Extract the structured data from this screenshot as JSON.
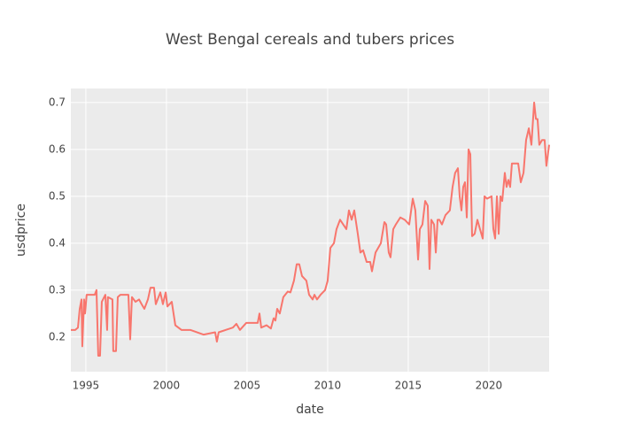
{
  "chart_data": {
    "type": "line",
    "title": "West Bengal cereals and tubers prices",
    "x_label": "date",
    "y_label": "usdprice",
    "x": [
      1994.07,
      1994.34,
      1994.51,
      1994.62,
      1994.73,
      1994.78,
      1994.89,
      1994.95,
      1995.05,
      1995.55,
      1995.66,
      1995.77,
      1995.88,
      1995.99,
      1996.21,
      1996.32,
      1996.37,
      1996.65,
      1996.7,
      1996.87,
      1996.98,
      1997.14,
      1997.64,
      1997.75,
      1997.86,
      1998.08,
      1998.3,
      1998.46,
      1998.63,
      1998.85,
      1999.01,
      1999.23,
      1999.34,
      1999.62,
      1999.78,
      1999.95,
      2000.06,
      2000.33,
      2000.44,
      2000.55,
      2000.93,
      2001.48,
      2002.31,
      2003.02,
      2003.13,
      2003.24,
      2003.68,
      2004.12,
      2004.34,
      2004.56,
      2004.95,
      2005.66,
      2005.77,
      2005.88,
      2006.21,
      2006.48,
      2006.65,
      2006.76,
      2006.87,
      2007.03,
      2007.25,
      2007.53,
      2007.69,
      2007.91,
      2008.08,
      2008.24,
      2008.41,
      2008.68,
      2008.85,
      2009.07,
      2009.18,
      2009.34,
      2009.56,
      2009.84,
      2010.0,
      2010.17,
      2010.39,
      2010.55,
      2010.77,
      2011.16,
      2011.32,
      2011.49,
      2011.65,
      2011.87,
      2012.03,
      2012.2,
      2012.42,
      2012.64,
      2012.75,
      2012.97,
      2013.3,
      2013.52,
      2013.63,
      2013.79,
      2013.9,
      2014.07,
      2014.23,
      2014.51,
      2014.78,
      2015.06,
      2015.28,
      2015.44,
      2015.61,
      2015.72,
      2015.88,
      2016.05,
      2016.21,
      2016.32,
      2016.43,
      2016.6,
      2016.71,
      2016.82,
      2016.93,
      2017.09,
      2017.31,
      2017.58,
      2017.75,
      2017.91,
      2018.08,
      2018.19,
      2018.3,
      2018.41,
      2018.52,
      2018.63,
      2018.74,
      2018.85,
      2018.96,
      2019.12,
      2019.29,
      2019.45,
      2019.62,
      2019.73,
      2019.89,
      2020.17,
      2020.28,
      2020.39,
      2020.5,
      2020.61,
      2020.72,
      2020.83,
      2020.99,
      2021.1,
      2021.21,
      2021.32,
      2021.43,
      2021.82,
      2021.98,
      2022.15,
      2022.31,
      2022.48,
      2022.64,
      2022.81,
      2022.92,
      2023.02,
      2023.13,
      2023.3,
      2023.46,
      2023.57,
      2023.74
    ],
    "values": [
      0.215,
      0.215,
      0.22,
      0.26,
      0.28,
      0.18,
      0.28,
      0.25,
      0.29,
      0.29,
      0.3,
      0.16,
      0.16,
      0.275,
      0.29,
      0.215,
      0.285,
      0.28,
      0.17,
      0.17,
      0.285,
      0.29,
      0.29,
      0.195,
      0.285,
      0.275,
      0.28,
      0.27,
      0.26,
      0.28,
      0.305,
      0.305,
      0.27,
      0.295,
      0.27,
      0.295,
      0.265,
      0.275,
      0.25,
      0.225,
      0.215,
      0.215,
      0.205,
      0.21,
      0.19,
      0.21,
      0.215,
      0.22,
      0.228,
      0.215,
      0.23,
      0.23,
      0.25,
      0.22,
      0.225,
      0.218,
      0.24,
      0.235,
      0.26,
      0.25,
      0.285,
      0.297,
      0.295,
      0.32,
      0.355,
      0.355,
      0.33,
      0.32,
      0.29,
      0.28,
      0.29,
      0.28,
      0.29,
      0.3,
      0.32,
      0.39,
      0.4,
      0.43,
      0.45,
      0.43,
      0.47,
      0.45,
      0.47,
      0.42,
      0.38,
      0.385,
      0.36,
      0.36,
      0.34,
      0.38,
      0.4,
      0.445,
      0.44,
      0.38,
      0.37,
      0.43,
      0.44,
      0.455,
      0.45,
      0.44,
      0.495,
      0.47,
      0.365,
      0.43,
      0.44,
      0.49,
      0.48,
      0.345,
      0.45,
      0.44,
      0.38,
      0.45,
      0.45,
      0.44,
      0.46,
      0.47,
      0.52,
      0.55,
      0.56,
      0.5,
      0.47,
      0.52,
      0.53,
      0.455,
      0.6,
      0.59,
      0.415,
      0.42,
      0.45,
      0.43,
      0.41,
      0.5,
      0.495,
      0.5,
      0.43,
      0.41,
      0.5,
      0.42,
      0.5,
      0.49,
      0.55,
      0.52,
      0.535,
      0.52,
      0.57,
      0.57,
      0.53,
      0.55,
      0.62,
      0.645,
      0.61,
      0.7,
      0.665,
      0.665,
      0.61,
      0.62,
      0.62,
      0.565,
      0.61
    ],
    "color": "#F8766D",
    "xlim": [
      1994.07,
      2023.74
    ],
    "ylim": [
      0.126,
      0.73
    ],
    "xticks": [
      1995,
      2000,
      2005,
      2010,
      2015,
      2020
    ],
    "yticks": [
      0.2,
      0.3,
      0.4,
      0.5,
      0.6,
      0.7
    ],
    "grid": true
  }
}
